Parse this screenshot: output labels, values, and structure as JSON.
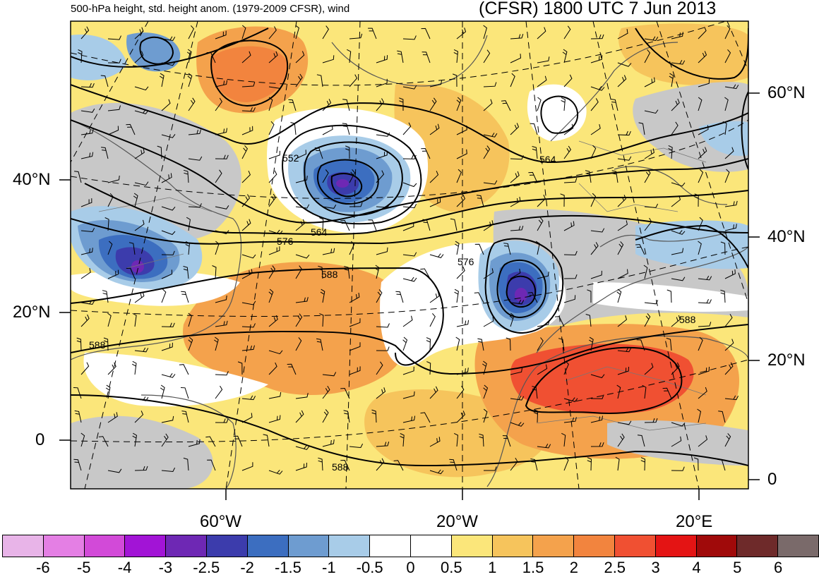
{
  "header": {
    "left_title": "500-hPa height, std. height anom. (1979-2009 CFSR), wind",
    "right_title": "(CFSR) 1800 UTC 7 Jun 2013"
  },
  "axes": {
    "left_lat_labels": [
      "40°N",
      "20°N",
      "0"
    ],
    "right_lat_labels": [
      "60°N",
      "40°N",
      "20°N",
      "0"
    ],
    "lon_labels": [
      "60°W",
      "20°W",
      "20°E"
    ]
  },
  "contour_labels": [
    "552",
    "564",
    "564",
    "576",
    "576",
    "588",
    "588",
    "588",
    "588"
  ],
  "colorbar": {
    "colors": [
      "#e8b4e8",
      "#e47fe4",
      "#d24ad8",
      "#a214d6",
      "#6e28b4",
      "#3c3cac",
      "#3c6ec0",
      "#6e9cd0",
      "#a8cce8",
      "#ffffff",
      "#ffffff",
      "#fbe67a",
      "#f6c45c",
      "#f4a24c",
      "#f2843e",
      "#f05032",
      "#e41414",
      "#a00a0a",
      "#6e2a2a",
      "#7a6a6a"
    ],
    "tick_labels": [
      "-6",
      "-5",
      "-4",
      "-3",
      "-2.5",
      "-2",
      "-1.5",
      "-1",
      "-0.5",
      "0",
      "0.5",
      "1",
      "1.5",
      "2",
      "2.5",
      "3",
      "4",
      "5",
      "6"
    ]
  }
}
